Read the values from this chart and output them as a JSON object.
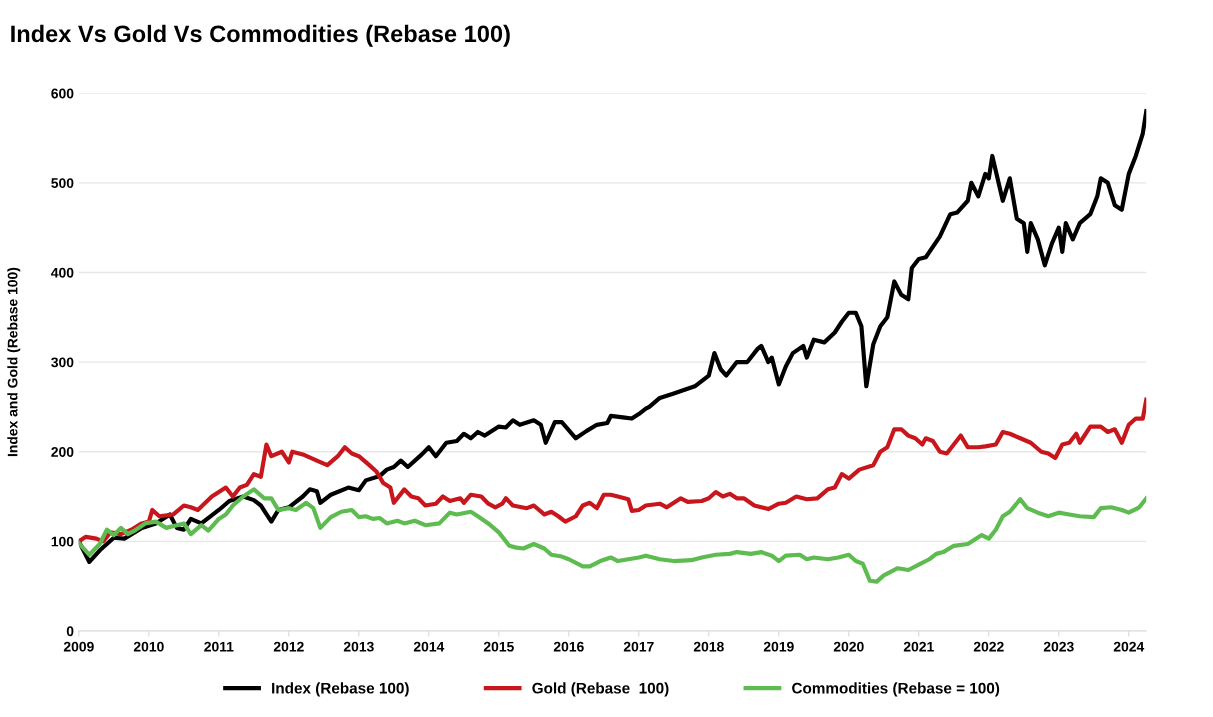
{
  "chart_data": {
    "type": "line",
    "title": "Index Vs Gold Vs Commodities (Rebase 100)",
    "ylabel": "Index and Gold (Rebase 100)",
    "xlim": [
      2009,
      2024.25
    ],
    "xticks": [
      2009,
      2010,
      2011,
      2012,
      2013,
      2014,
      2015,
      2016,
      2017,
      2018,
      2019,
      2020,
      2021,
      2022,
      2023,
      2024
    ],
    "ylim": [
      0,
      600
    ],
    "yticks": [
      0,
      100,
      200,
      300,
      400,
      500,
      600
    ],
    "grid": "y",
    "legend": "bottom",
    "line_style": "solid",
    "marker": "none",
    "series": [
      {
        "name": "Index (Rebase 100)",
        "color": "#000000",
        "x": [
          2009.0,
          2009.15,
          2009.3,
          2009.5,
          2009.65,
          2009.9,
          2010.1,
          2010.3,
          2010.4,
          2010.5,
          2010.6,
          2010.75,
          2011.0,
          2011.15,
          2011.35,
          2011.5,
          2011.6,
          2011.75,
          2011.85,
          2012.0,
          2012.2,
          2012.3,
          2012.4,
          2012.45,
          2012.6,
          2012.85,
          2013.0,
          2013.1,
          2013.3,
          2013.4,
          2013.5,
          2013.6,
          2013.7,
          2013.9,
          2014.0,
          2014.1,
          2014.25,
          2014.4,
          2014.5,
          2014.6,
          2014.7,
          2014.8,
          2015.0,
          2015.1,
          2015.2,
          2015.3,
          2015.5,
          2015.6,
          2015.67,
          2015.8,
          2015.9,
          2016.1,
          2016.25,
          2016.4,
          2016.55,
          2016.6,
          2016.8,
          2016.9,
          2017.0,
          2017.1,
          2017.15,
          2017.3,
          2017.5,
          2017.8,
          2018.0,
          2018.08,
          2018.17,
          2018.25,
          2018.4,
          2018.55,
          2018.7,
          2018.75,
          2018.85,
          2018.9,
          2019.0,
          2019.1,
          2019.2,
          2019.35,
          2019.4,
          2019.5,
          2019.65,
          2019.8,
          2019.9,
          2020.0,
          2020.1,
          2020.18,
          2020.25,
          2020.35,
          2020.45,
          2020.55,
          2020.65,
          2020.75,
          2020.85,
          2020.9,
          2021.0,
          2021.1,
          2021.3,
          2021.45,
          2021.55,
          2021.7,
          2021.75,
          2021.85,
          2021.95,
          2022.0,
          2022.05,
          2022.2,
          2022.3,
          2022.4,
          2022.5,
          2022.55,
          2022.6,
          2022.7,
          2022.8,
          2022.9,
          2023.0,
          2023.05,
          2023.1,
          2023.2,
          2023.3,
          2023.45,
          2023.55,
          2023.6,
          2023.7,
          2023.8,
          2023.9,
          2024.0,
          2024.1,
          2024.2,
          2024.25
        ],
        "values": [
          100,
          77,
          90,
          104,
          103,
          115,
          120,
          130,
          115,
          113,
          125,
          120,
          135,
          145,
          150,
          146,
          140,
          122,
          135,
          138,
          150,
          158,
          156,
          143,
          152,
          160,
          157,
          168,
          173,
          180,
          183,
          190,
          183,
          197,
          205,
          195,
          210,
          212,
          220,
          215,
          222,
          218,
          228,
          227,
          235,
          230,
          235,
          230,
          210,
          233,
          233,
          215,
          223,
          230,
          232,
          240,
          238,
          237,
          242,
          248,
          250,
          260,
          265,
          273,
          285,
          310,
          292,
          285,
          300,
          300,
          315,
          318,
          300,
          305,
          275,
          295,
          310,
          318,
          305,
          325,
          322,
          333,
          345,
          355,
          355,
          340,
          273,
          320,
          340,
          350,
          390,
          375,
          370,
          405,
          415,
          417,
          440,
          465,
          467,
          480,
          500,
          485,
          510,
          505,
          530,
          480,
          505,
          460,
          455,
          423,
          455,
          437,
          408,
          432,
          450,
          423,
          455,
          437,
          455,
          465,
          485,
          505,
          500,
          475,
          470,
          510,
          530,
          555,
          580
        ]
      },
      {
        "name": "Gold (Rebase  100)",
        "color": "#c8161d",
        "x": [
          2009.0,
          2009.1,
          2009.25,
          2009.35,
          2009.45,
          2009.6,
          2009.75,
          2009.9,
          2010.0,
          2010.05,
          2010.15,
          2010.35,
          2010.5,
          2010.6,
          2010.7,
          2010.9,
          2011.0,
          2011.1,
          2011.2,
          2011.3,
          2011.4,
          2011.5,
          2011.6,
          2011.68,
          2011.75,
          2011.9,
          2012.0,
          2012.05,
          2012.2,
          2012.4,
          2012.55,
          2012.7,
          2012.8,
          2012.9,
          2013.0,
          2013.15,
          2013.25,
          2013.35,
          2013.45,
          2013.5,
          2013.65,
          2013.75,
          2013.85,
          2013.95,
          2014.1,
          2014.2,
          2014.3,
          2014.45,
          2014.5,
          2014.6,
          2014.75,
          2014.85,
          2014.95,
          2015.05,
          2015.1,
          2015.2,
          2015.4,
          2015.5,
          2015.65,
          2015.75,
          2015.85,
          2015.95,
          2016.1,
          2016.2,
          2016.3,
          2016.4,
          2016.5,
          2016.6,
          2016.7,
          2016.85,
          2016.9,
          2017.0,
          2017.1,
          2017.3,
          2017.4,
          2017.6,
          2017.7,
          2017.9,
          2018.0,
          2018.1,
          2018.2,
          2018.3,
          2018.4,
          2018.5,
          2018.65,
          2018.85,
          2019.0,
          2019.1,
          2019.25,
          2019.4,
          2019.55,
          2019.7,
          2019.8,
          2019.9,
          2020.0,
          2020.15,
          2020.35,
          2020.45,
          2020.55,
          2020.65,
          2020.75,
          2020.85,
          2020.95,
          2021.05,
          2021.1,
          2021.2,
          2021.3,
          2021.4,
          2021.6,
          2021.7,
          2021.85,
          2021.95,
          2022.1,
          2022.2,
          2022.3,
          2022.45,
          2022.6,
          2022.75,
          2022.85,
          2022.95,
          2023.05,
          2023.15,
          2023.25,
          2023.3,
          2023.45,
          2023.6,
          2023.7,
          2023.8,
          2023.9,
          2024.0,
          2024.1,
          2024.2,
          2024.25
        ],
        "values": [
          100,
          105,
          103,
          100,
          110,
          108,
          113,
          120,
          122,
          135,
          128,
          130,
          140,
          138,
          135,
          150,
          155,
          160,
          150,
          160,
          163,
          175,
          172,
          208,
          195,
          200,
          188,
          200,
          197,
          190,
          185,
          195,
          205,
          198,
          195,
          185,
          178,
          165,
          160,
          143,
          158,
          150,
          148,
          140,
          142,
          150,
          145,
          148,
          143,
          152,
          150,
          142,
          138,
          142,
          148,
          140,
          137,
          140,
          130,
          133,
          128,
          122,
          128,
          140,
          143,
          137,
          152,
          152,
          150,
          147,
          134,
          135,
          140,
          142,
          138,
          148,
          144,
          145,
          148,
          155,
          150,
          153,
          148,
          148,
          140,
          136,
          142,
          143,
          150,
          147,
          148,
          158,
          160,
          175,
          170,
          180,
          185,
          200,
          205,
          225,
          225,
          218,
          215,
          208,
          215,
          212,
          200,
          198,
          218,
          205,
          205,
          206,
          208,
          222,
          220,
          215,
          210,
          200,
          198,
          193,
          208,
          210,
          220,
          210,
          228,
          228,
          222,
          225,
          210,
          230,
          237,
          237,
          258
        ]
      },
      {
        "name": "Commodities (Rebase = 100)",
        "color": "#5dbb50",
        "x": [
          2009.0,
          2009.15,
          2009.3,
          2009.4,
          2009.5,
          2009.6,
          2009.7,
          2009.8,
          2009.95,
          2010.1,
          2010.25,
          2010.4,
          2010.5,
          2010.6,
          2010.75,
          2010.85,
          2011.0,
          2011.1,
          2011.2,
          2011.35,
          2011.5,
          2011.65,
          2011.75,
          2011.85,
          2012.0,
          2012.1,
          2012.25,
          2012.35,
          2012.45,
          2012.6,
          2012.75,
          2012.9,
          2013.0,
          2013.1,
          2013.2,
          2013.3,
          2013.4,
          2013.55,
          2013.65,
          2013.8,
          2013.95,
          2014.15,
          2014.3,
          2014.4,
          2014.6,
          2014.7,
          2014.85,
          2015.0,
          2015.15,
          2015.25,
          2015.35,
          2015.5,
          2015.65,
          2015.75,
          2015.9,
          2016.0,
          2016.2,
          2016.3,
          2016.45,
          2016.6,
          2016.7,
          2016.85,
          2017.0,
          2017.1,
          2017.3,
          2017.5,
          2017.75,
          2017.9,
          2018.1,
          2018.3,
          2018.4,
          2018.6,
          2018.75,
          2018.9,
          2019.0,
          2019.1,
          2019.3,
          2019.4,
          2019.5,
          2019.7,
          2019.85,
          2020.0,
          2020.1,
          2020.2,
          2020.3,
          2020.4,
          2020.5,
          2020.7,
          2020.85,
          2021.0,
          2021.15,
          2021.25,
          2021.35,
          2021.5,
          2021.7,
          2021.9,
          2022.0,
          2022.1,
          2022.2,
          2022.3,
          2022.45,
          2022.55,
          2022.7,
          2022.85,
          2023.0,
          2023.15,
          2023.3,
          2023.5,
          2023.6,
          2023.75,
          2023.9,
          2024.0,
          2024.15,
          2024.25
        ],
        "values": [
          98,
          85,
          97,
          113,
          107,
          115,
          108,
          112,
          120,
          122,
          115,
          118,
          120,
          108,
          118,
          112,
          125,
          130,
          140,
          150,
          158,
          148,
          148,
          135,
          137,
          135,
          143,
          137,
          115,
          127,
          133,
          135,
          127,
          128,
          125,
          126,
          120,
          123,
          120,
          123,
          118,
          120,
          132,
          130,
          133,
          128,
          120,
          110,
          95,
          93,
          92,
          97,
          92,
          85,
          83,
          80,
          72,
          72,
          78,
          82,
          78,
          80,
          82,
          84,
          80,
          78,
          79,
          82,
          85,
          86,
          88,
          86,
          88,
          84,
          78,
          84,
          85,
          80,
          82,
          80,
          82,
          85,
          78,
          75,
          56,
          55,
          62,
          70,
          68,
          74,
          80,
          86,
          88,
          95,
          97,
          107,
          103,
          113,
          128,
          133,
          147,
          137,
          132,
          128,
          132,
          130,
          128,
          127,
          137,
          138,
          135,
          132,
          138,
          148
        ]
      }
    ]
  }
}
